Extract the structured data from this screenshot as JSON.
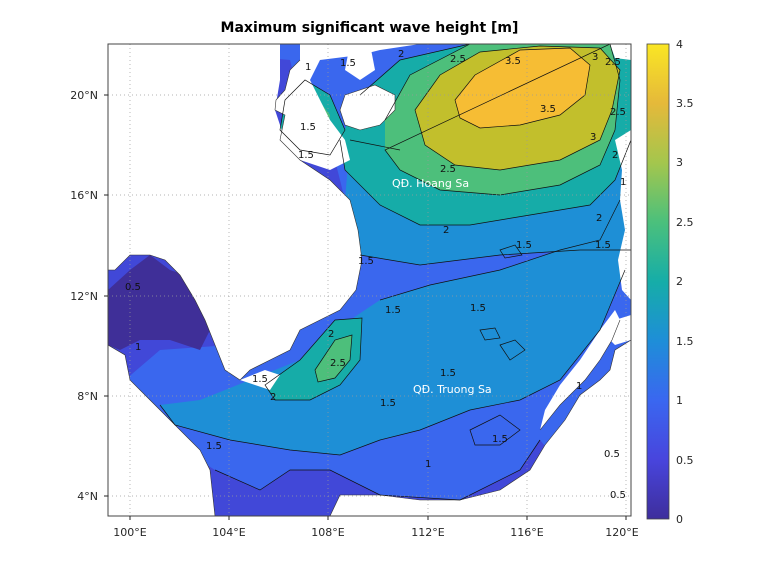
{
  "title": "Maximum significant wave height [m]",
  "map": {
    "lon_range": [
      99.2,
      120.3
    ],
    "lat_range": [
      3.0,
      22.0
    ],
    "lon_ticks": [
      "100°E",
      "104°E",
      "108°E",
      "112°E",
      "116°E",
      "120°E"
    ],
    "lat_ticks": [
      "4°N",
      "8°N",
      "12°N",
      "16°N",
      "20°N"
    ],
    "land_color": "#ffffff",
    "grid": "dotted"
  },
  "colorbar": {
    "min": 0,
    "max": 4,
    "ticks": [
      "0",
      "0.5",
      "1",
      "1.5",
      "2",
      "2.5",
      "3",
      "3.5",
      "4"
    ],
    "colormap": "parula",
    "colors": [
      "#3e2e9c",
      "#4845dd",
      "#3a67f0",
      "#1e8ed8",
      "#16ada8",
      "#4bc07c",
      "#a4c64d",
      "#e5b93a",
      "#fae624"
    ]
  },
  "place_labels": {
    "hoang_sa": "QĐ. Hoang Sa",
    "truong_sa": "QĐ. Truong Sa"
  },
  "contour_labels": [
    "3.5",
    "3",
    "3.5",
    "2.5",
    "2",
    "2.5",
    "3",
    "2.5",
    "2",
    "1.5",
    "1.5",
    "1",
    "1.5",
    "1.5",
    "2.5",
    "2",
    "2",
    "2.5",
    "1.5",
    "1.5",
    "1.5",
    "1.5",
    "1",
    "1",
    "0.5",
    "1.5",
    "1.5",
    "1",
    "0.5",
    "0.5",
    "1.5",
    "1",
    "2",
    "1.5",
    "2",
    "1.5"
  ]
}
